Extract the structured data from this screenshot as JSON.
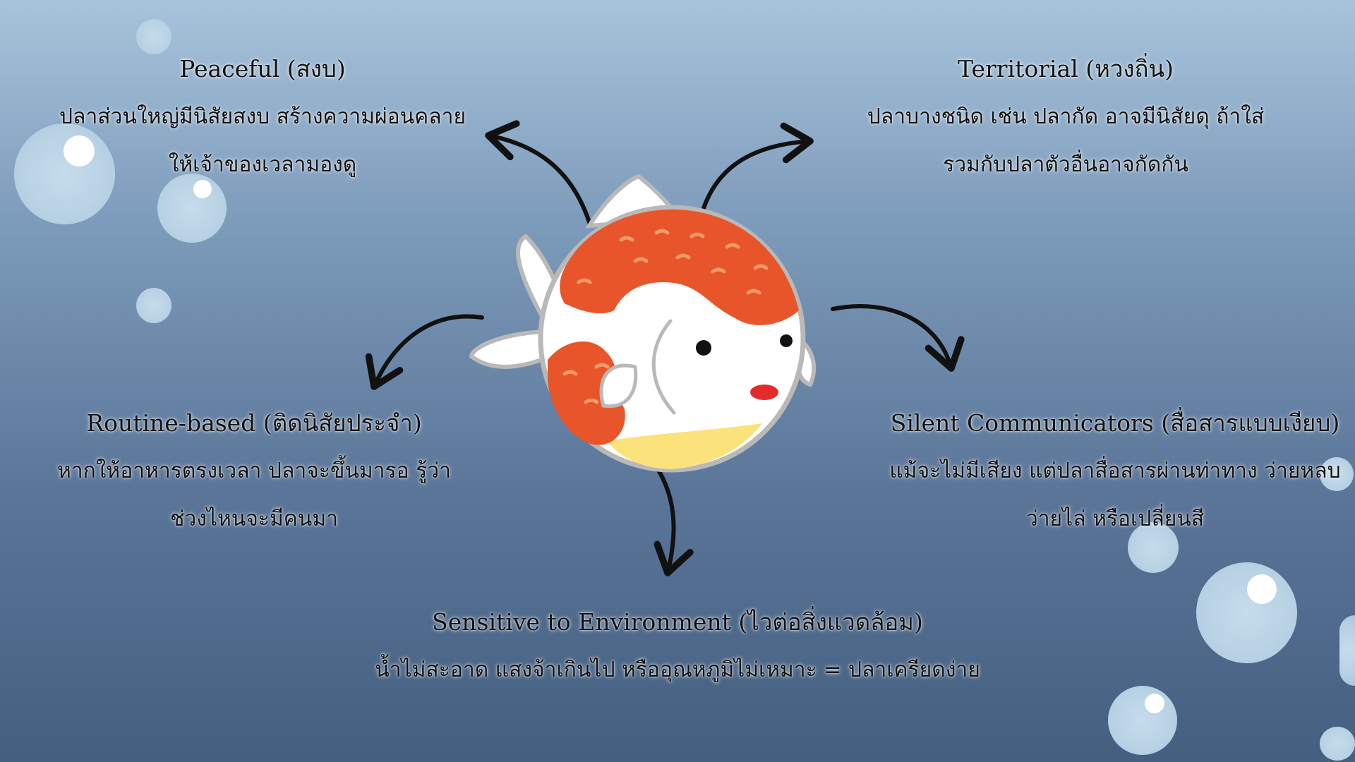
{
  "nodes": [
    {
      "id": "peaceful",
      "title": "Peaceful (สงบ)",
      "lines": [
        "ปลาส่วนใหญ่มีนิสัยสงบ สร้างความผ่อนคลาย",
        "ให้เจ้าของเวลามองดู"
      ]
    },
    {
      "id": "territorial",
      "title": "Territorial (หวงถิ่น)",
      "lines": [
        "ปลาบางชนิด เช่น ปลากัด อาจมีนิสัยดุ ถ้าใส่",
        "รวมกับปลาตัวอื่นอาจกัดกัน"
      ]
    },
    {
      "id": "routine",
      "title": "Routine-based (ติดนิสัยประจำ)",
      "lines": [
        "หากให้อาหารตรงเวลา ปลาจะขึ้นมารอ รู้ว่า",
        "ช่วงไหนจะมีคนมา"
      ]
    },
    {
      "id": "silent",
      "title": "Silent Communicators (สื่อสารแบบเงียบ)",
      "lines": [
        "แม้จะไม่มีเสียง แต่ปลาสื่อสารผ่านท่าทาง ว่ายหลบ",
        "ว่ายไล่ หรือเปลี่ยนสี"
      ]
    },
    {
      "id": "sensitive",
      "title": "Sensitive to Environment (ไวต่อสิ่งแวดล้อม)",
      "lines": [
        "น้ำไม่สะอาด แสงจ้าเกินไป หรืออุณหภูมิไม่เหมาะ = ปลาเครียดง่าย"
      ]
    }
  ],
  "colors": {
    "fish_orange": "#e8552a",
    "fish_white": "#ffffff",
    "fish_belly": "#fbe27a",
    "arrow": "#111111"
  }
}
